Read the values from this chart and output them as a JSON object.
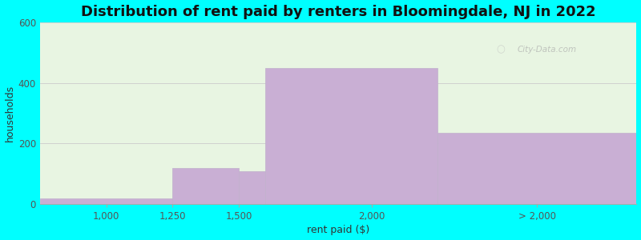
{
  "title": "Distribution of rent paid by renters in Bloomingdale, NJ in 2022",
  "xlabel": "rent paid ($)",
  "ylabel": "households",
  "bar_lefts": [
    750,
    1250,
    1500,
    1600,
    2250
  ],
  "bar_widths": [
    500,
    250,
    100,
    650,
    750
  ],
  "bar_heights": [
    20,
    120,
    110,
    450,
    235
  ],
  "bar_color": "#c9afd4",
  "bar_edge_color": "#c0b0cc",
  "xlim": [
    750,
    3000
  ],
  "ylim": [
    0,
    600
  ],
  "yticks": [
    0,
    200,
    400,
    600
  ],
  "xtick_positions": [
    1000,
    1250,
    1500,
    2000,
    2625
  ],
  "xtick_labels": [
    "1,000",
    "1,250",
    "1,500",
    "2,000",
    "> 2,000"
  ],
  "bg_outer": "#00FFFF",
  "bg_plot": "#e8f5e2",
  "title_fontsize": 13,
  "axis_label_fontsize": 9,
  "tick_fontsize": 8.5,
  "watermark": "City-Data.com"
}
